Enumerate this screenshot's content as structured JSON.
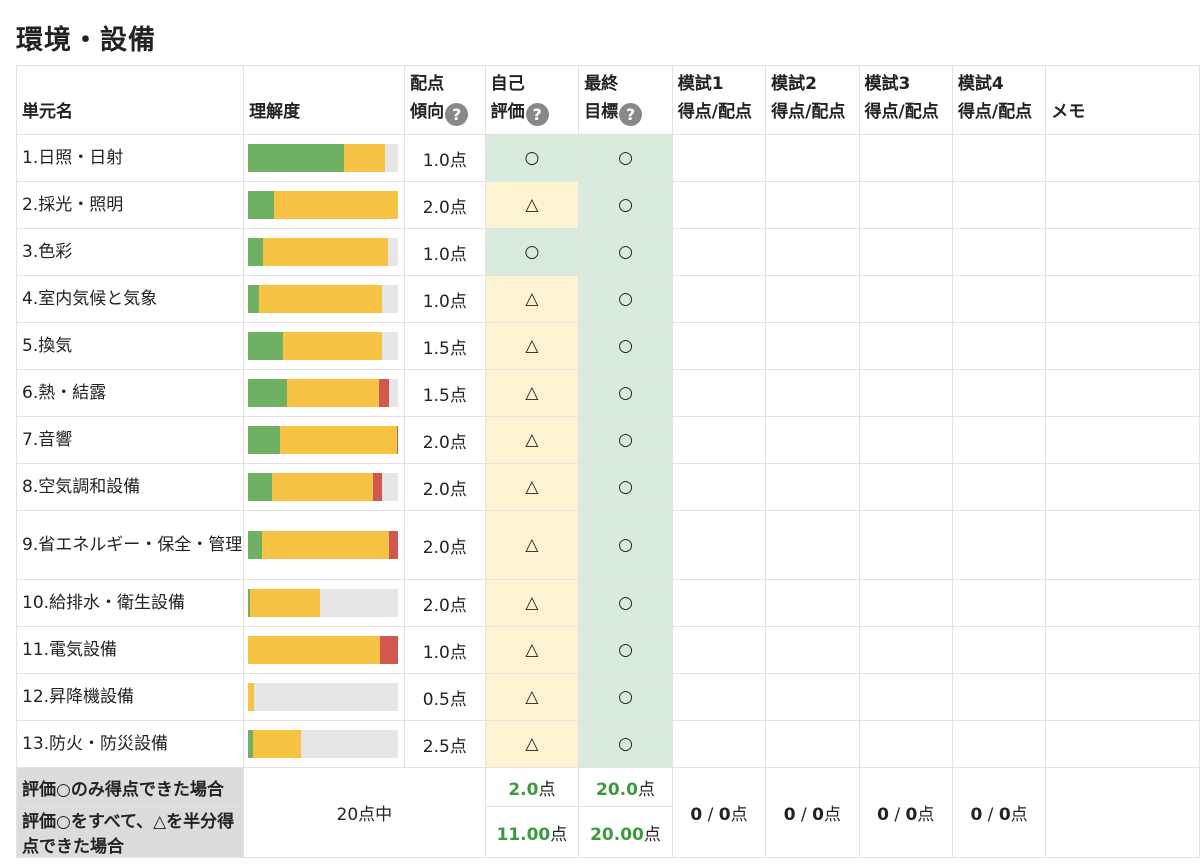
{
  "page_title": "環境・設備",
  "headers": {
    "unit": "単元名",
    "understanding": "理解度",
    "score_trend_1": "配点",
    "score_trend_2": "傾向",
    "self_eval_1": "自己",
    "self_eval_2": "評価",
    "final_goal_1": "最終",
    "final_goal_2": "目標",
    "help_mark": "?",
    "mock1_1": "模試1",
    "mock2_1": "模試2",
    "mock3_1": "模試3",
    "mock4_1": "模試4",
    "mock_sub": "得点/配点",
    "memo": "メモ"
  },
  "colors": {
    "green": "#6fb063",
    "yellow": "#f6c344",
    "red": "#d2574f",
    "track": "#e6e6e6"
  },
  "rows": [
    {
      "unit": "1.日照・日射",
      "bar": {
        "green": 0.64,
        "yellow": 0.27,
        "red": 0.0
      },
      "points": "1.0点",
      "self": "○",
      "final": "○"
    },
    {
      "unit": "2.採光・照明",
      "bar": {
        "green": 0.17,
        "yellow": 0.83,
        "red": 0.0
      },
      "points": "2.0点",
      "self": "△",
      "final": "○"
    },
    {
      "unit": "3.色彩",
      "bar": {
        "green": 0.1,
        "yellow": 0.83,
        "red": 0.0
      },
      "points": "1.0点",
      "self": "○",
      "final": "○"
    },
    {
      "unit": "4.室内気候と気象",
      "bar": {
        "green": 0.07,
        "yellow": 0.82,
        "red": 0.0
      },
      "points": "1.0点",
      "self": "△",
      "final": "○"
    },
    {
      "unit": "5.換気",
      "bar": {
        "green": 0.23,
        "yellow": 0.66,
        "red": 0.0
      },
      "points": "1.5点",
      "self": "△",
      "final": "○"
    },
    {
      "unit": "6.熱・結露",
      "bar": {
        "green": 0.26,
        "yellow": 0.61,
        "red": 0.07
      },
      "points": "1.5点",
      "self": "△",
      "final": "○"
    },
    {
      "unit": "7.音響",
      "bar": {
        "green": 0.21,
        "yellow": 0.78,
        "red": 0.01
      },
      "points": "2.0点",
      "self": "△",
      "final": "○"
    },
    {
      "unit": "8.空気調和設備",
      "bar": {
        "green": 0.16,
        "yellow": 0.67,
        "red": 0.06
      },
      "points": "2.0点",
      "self": "△",
      "final": "○"
    },
    {
      "unit": "9.省エネルギー・保全・管理",
      "bar": {
        "green": 0.09,
        "yellow": 0.85,
        "red": 0.06
      },
      "points": "2.0点",
      "self": "△",
      "final": "○"
    },
    {
      "unit": "10.給排水・衛生設備",
      "bar": {
        "green": 0.01,
        "yellow": 0.47,
        "red": 0.0
      },
      "points": "2.0点",
      "self": "△",
      "final": "○"
    },
    {
      "unit": "11.電気設備",
      "bar": {
        "green": 0.0,
        "yellow": 0.88,
        "red": 0.12
      },
      "points": "1.0点",
      "self": "△",
      "final": "○"
    },
    {
      "unit": "12.昇降機設備",
      "bar": {
        "green": 0.0,
        "yellow": 0.04,
        "red": 0.0
      },
      "points": "0.5点",
      "self": "△",
      "final": "○"
    },
    {
      "unit": "13.防火・防災設備",
      "bar": {
        "green": 0.03,
        "yellow": 0.32,
        "red": 0.0
      },
      "points": "2.5点",
      "self": "△",
      "final": "○"
    }
  ],
  "footer": {
    "label_1": "評価○のみ得点できた場合",
    "label_2": "評価○をすべて、△を半分得点できた場合",
    "total": "20点中",
    "self_1_num": "2.0",
    "self_1_unit": "点",
    "final_1_num": "20.0",
    "final_1_unit": "点",
    "self_2_num": "11.00",
    "self_2_unit": "点",
    "final_2_num": "20.00",
    "final_2_unit": "点",
    "mock_num_a": "0",
    "mock_sep": " / ",
    "mock_num_b": "0",
    "mock_unit": "点"
  }
}
